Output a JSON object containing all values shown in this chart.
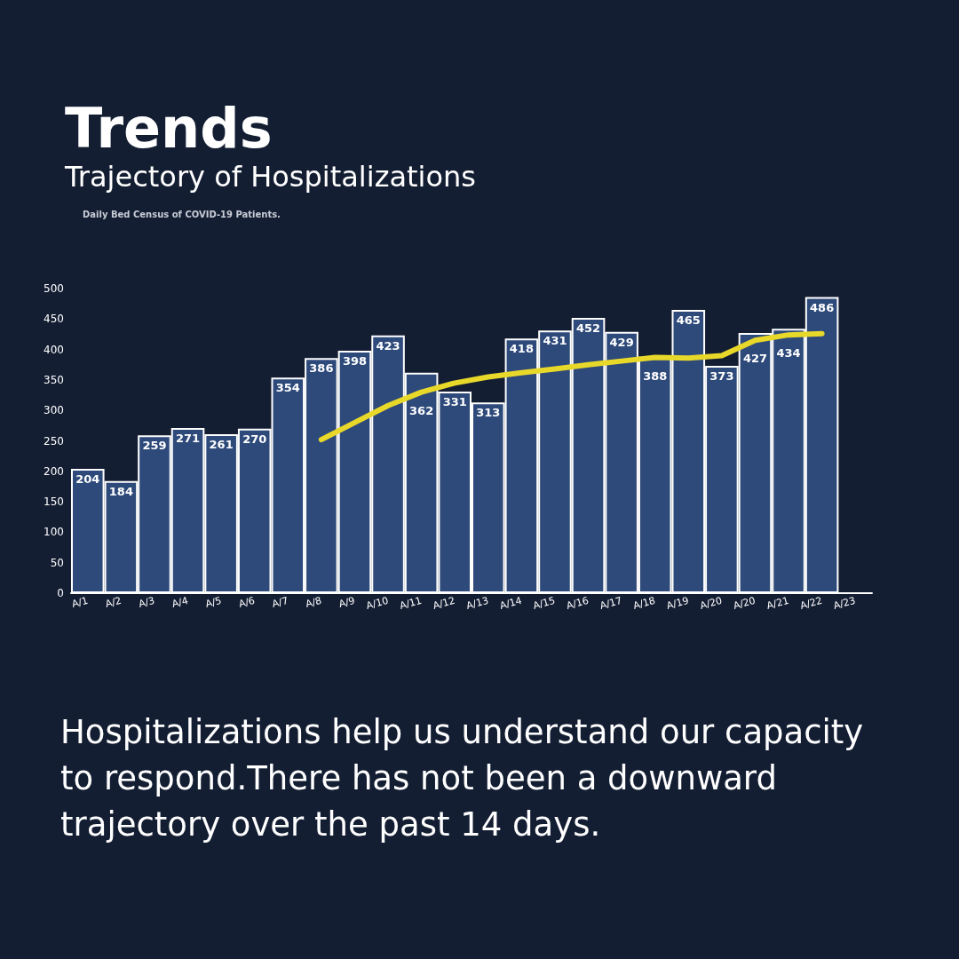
{
  "chart_data": {
    "type": "bar",
    "title": "Trends",
    "subtitle": "Trajectory of Hospitalizations",
    "annotations": [
      "Daily Bed Census of COVID-19 Patients.",
      "Hospitalizations help us understand our capacity to respond.There has not been a downward trajectory over the past 14 days."
    ],
    "categories": [
      "A/1",
      "A/2",
      "A/3",
      "A/4",
      "A/5",
      "A/6",
      "A/7",
      "A/8",
      "A/9",
      "A/10",
      "A/11",
      "A/12",
      "A/13",
      "A/14",
      "A/15",
      "A/16",
      "A/17",
      "A/18",
      "A/19",
      "A/20",
      "A/20",
      "A/21",
      "A/22",
      "A/23"
    ],
    "series": [
      {
        "color": "#2e4a7a",
        "data_labels": true,
        "values": [
          204,
          184,
          259,
          271,
          261,
          270,
          354,
          386,
          398,
          423,
          362,
          331,
          313,
          418,
          431,
          452,
          429,
          388,
          465,
          373,
          427,
          434,
          486,
          null
        ]
      },
      {
        "type": "line",
        "color": "#e8d82a",
        "marker": "none",
        "values": [
          null,
          null,
          null,
          null,
          null,
          null,
          null,
          252,
          280,
          308,
          330,
          345,
          355,
          362,
          368,
          375,
          381,
          387,
          386,
          390,
          415,
          424,
          426,
          null
        ]
      }
    ],
    "ylim": [
      0,
      500
    ],
    "yticks": [
      0,
      50,
      100,
      150,
      200,
      250,
      300,
      350,
      400,
      450,
      500
    ],
    "grid": false
  }
}
